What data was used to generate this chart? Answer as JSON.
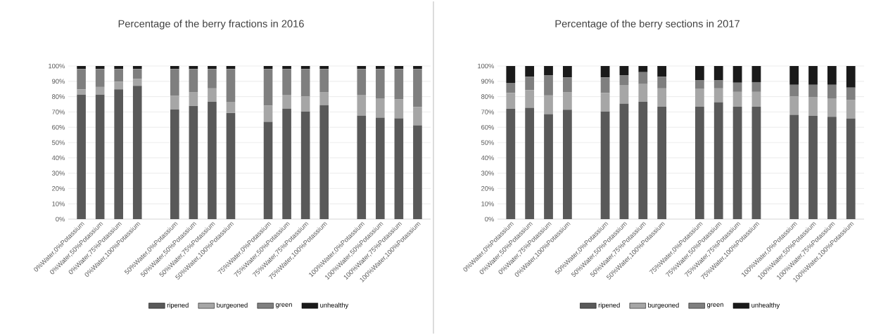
{
  "chart_data": [
    {
      "type": "bar",
      "stacked": true,
      "title": "Percentage of the berry fractions in 2016",
      "categories": [
        "0%Water,0%Potassium",
        "0%Water,50%Potassium",
        "0%Water,75%Potassium",
        "0%Water,100%Potassium",
        null,
        "50%Water,0%Potassium",
        "50%Water,50%Potassium",
        "50%Water,75%Potassium",
        "50%Water,100%Potassium",
        null,
        "75%Water,0%Potassium",
        "75%Water,50%Potassium",
        "75%Water,75%Potassium",
        "75%Water,100%Potassium",
        null,
        "100%Water,0%Potassium",
        "100%Water,50%Potassium",
        "100%Water,75%Potassium",
        "100%Water,100%Potassium"
      ],
      "series": [
        {
          "name": "ripened",
          "color": "#595959",
          "values": [
            81.3,
            81.3,
            84.7,
            87.0,
            null,
            71.5,
            74.0,
            76.6,
            69.3,
            null,
            63.5,
            72.1,
            70.3,
            74.4,
            null,
            67.5,
            66.3,
            65.8,
            61.2
          ]
        },
        {
          "name": "burgeoned",
          "color": "#a6a6a6",
          "values": [
            3.4,
            5.0,
            5.1,
            4.5,
            null,
            9.2,
            9.0,
            8.8,
            7.3,
            null,
            10.7,
            9.1,
            9.7,
            8.6,
            null,
            13.7,
            12.6,
            12.6,
            12.1
          ]
        },
        {
          "name": "green",
          "color": "#7f7f7f",
          "values": [
            13.3,
            11.7,
            8.2,
            6.5,
            null,
            17.3,
            15.0,
            12.6,
            21.4,
            null,
            23.8,
            16.8,
            18.0,
            15.0,
            null,
            16.8,
            19.1,
            19.6,
            24.7
          ]
        },
        {
          "name": "unhealthy",
          "color": "#1a1a1a",
          "values": [
            2,
            2,
            2,
            2,
            null,
            2,
            2,
            2,
            2,
            null,
            2,
            2,
            2,
            2,
            null,
            2,
            2,
            2,
            2
          ]
        }
      ],
      "ylim": [
        0,
        100
      ],
      "yticks": [
        {
          "value": 0,
          "label": "0%"
        },
        {
          "value": 10,
          "label": "10%"
        },
        {
          "value": 20,
          "label": "20%"
        },
        {
          "value": 30,
          "label": "30%"
        },
        {
          "value": 40,
          "label": "40%"
        },
        {
          "value": 50,
          "label": "50%"
        },
        {
          "value": 60,
          "label": "60%"
        },
        {
          "value": 70,
          "label": "70%"
        },
        {
          "value": 80,
          "label": "80%"
        },
        {
          "value": 90,
          "label": "90%"
        },
        {
          "value": 100,
          "label": "100%"
        }
      ],
      "grid": "y",
      "legend": "bottom"
    },
    {
      "type": "bar",
      "stacked": true,
      "title": "Percentage of the berry sections in 2017",
      "categories": [
        "0%Water,0%Potassium",
        "0%Water,50%Potassium",
        "0%Water,75%Potassium",
        "0%Water,100%Potassium",
        null,
        "50%Water,0%Potassium",
        "50%Water,50%Potassium",
        "50%Water,75%Potassium",
        "50%Water,100%Potassium",
        null,
        "75%Water,0%Potassium",
        "75%Water,50%Potassium",
        "75%Water,75%Potassium",
        "75%Water,100%Potassium",
        null,
        "100%Water,0%Potassium",
        "100%Water,50%Potassium",
        "100%Water,75%Potassium",
        "100%Water,100%Potassium"
      ],
      "series": [
        {
          "name": "ripened",
          "color": "#595959",
          "values": [
            72.0,
            72.7,
            68.6,
            71.4,
            null,
            70.3,
            75.5,
            76.6,
            73.4,
            null,
            73.4,
            76.2,
            73.4,
            73.4,
            null,
            68.1,
            67.4,
            66.9,
            65.7
          ]
        },
        {
          "name": "burgeoned",
          "color": "#a6a6a6",
          "values": [
            10.4,
            11.5,
            12.2,
            11.6,
            null,
            12.1,
            12.1,
            11.6,
            12.0,
            null,
            11.6,
            9.2,
            9.7,
            9.7,
            null,
            11.9,
            12.1,
            12.0,
            12.0
          ]
        },
        {
          "name": "green",
          "color": "#7f7f7f",
          "values": [
            6.6,
            8.8,
            13.2,
            9.5,
            null,
            10.1,
            6.4,
            7.8,
            7.6,
            null,
            5.6,
            5.2,
            6.0,
            6.4,
            null,
            7.7,
            8.2,
            8.8,
            8.2
          ]
        },
        {
          "name": "unhealthy",
          "color": "#1a1a1a",
          "values": [
            11.0,
            7.0,
            6.0,
            7.5,
            null,
            7.5,
            6.0,
            4.0,
            7.0,
            null,
            9.4,
            9.4,
            10.9,
            10.5,
            null,
            12.3,
            12.3,
            12.3,
            14.1
          ]
        }
      ],
      "ylim": [
        0,
        100
      ],
      "yticks": [
        {
          "value": 0,
          "label": "0%"
        },
        {
          "value": 10,
          "label": "10%"
        },
        {
          "value": 20,
          "label": "20%"
        },
        {
          "value": 30,
          "label": "30%"
        },
        {
          "value": 40,
          "label": "40%"
        },
        {
          "value": 50,
          "label": "50%"
        },
        {
          "value": 60,
          "label": "60%"
        },
        {
          "value": 70,
          "label": "70%"
        },
        {
          "value": 80,
          "label": "80%"
        },
        {
          "value": 90,
          "label": "90%"
        },
        {
          "value": 100,
          "label": "100%"
        }
      ],
      "grid": "y",
      "legend": "bottom"
    }
  ]
}
